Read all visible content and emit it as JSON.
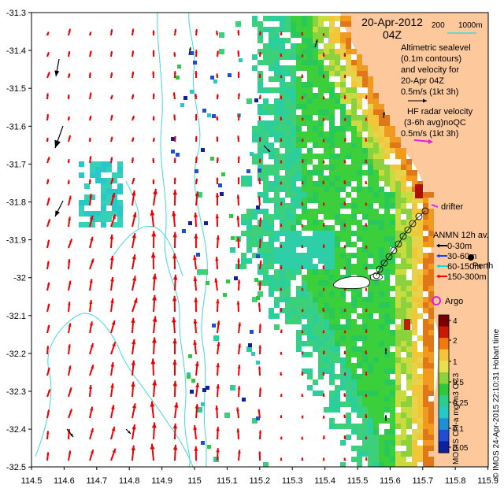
{
  "map": {
    "date": "20-Apr-2012",
    "time": "04Z",
    "depth_legend": {
      "a": "200",
      "b": "1000m"
    },
    "altimetry_note": [
      "Altimetric sealevel",
      "(0.1m contours)",
      "and velocity for",
      "20-Apr 04Z",
      "0.5m/s (1kt 3h)"
    ],
    "hf_radar_note": [
      "HF radar velocity",
      "(3-6h avg)noQC",
      "0.5m/s (1kt 3h)"
    ],
    "drifter_label": "drifter",
    "perth_label": "Perth",
    "argo_label": "Argo",
    "anmn_legend": {
      "title": "ANMN 12h av.",
      "rows": [
        {
          "label": "0-30m",
          "color": "#000000"
        },
        {
          "label": "30-60m",
          "color": "#1a3cff"
        },
        {
          "label": "60-150m",
          "color": "#00e0e0"
        },
        {
          "label": "150-300m",
          "color": "#ff0000"
        }
      ]
    },
    "colorbar": {
      "label": "MODIS Chl-a mg/m3 OC3",
      "ticks": [
        "4",
        "2",
        "1",
        "0.5",
        "0.25",
        "0.1",
        "0.05"
      ],
      "colors": [
        "#7a0000",
        "#c81a00",
        "#f07a10",
        "#f3c63a",
        "#e8e050",
        "#8cd23c",
        "#2fc83c",
        "#2ccf8a",
        "#26c8c8",
        "#1f8fd6",
        "#1f4fd0",
        "#101f9a"
      ]
    },
    "credit": "© IMOS 24-Apr-2015 22:10:31 Hobart time",
    "x_ticks": [
      "114.5",
      "114.6",
      "114.7",
      "114.8",
      "114.9",
      "115",
      "115.1",
      "115.2",
      "115.3",
      "115.4",
      "115.5",
      "115.6",
      "115.7",
      "115.8",
      "115.9"
    ],
    "y_ticks": [
      "-31.3",
      "-31.4",
      "-31.5",
      "-31.6",
      "-31.7",
      "-31.8",
      "-31.9",
      "-32",
      "-32.1",
      "-32.2",
      "-32.3",
      "-32.4",
      "-32.5"
    ],
    "colors": {
      "land": "#fcc89c",
      "contour": "#40d8e0",
      "altimetry_arrow": "#ee0000",
      "ocean": "#ffffff"
    }
  }
}
